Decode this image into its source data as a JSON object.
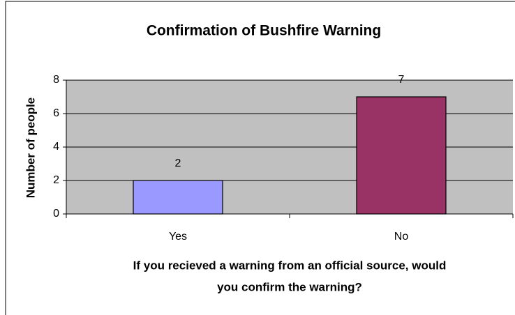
{
  "chart_data": {
    "type": "bar",
    "title": "Confirmation of Bushfire Warning",
    "categories": [
      "Yes",
      "No"
    ],
    "values": [
      2,
      7
    ],
    "colors": [
      "#9999ff",
      "#993366"
    ],
    "x_label": [
      "If you recieved a warning from an official source, would",
      "you confirm the warning?"
    ],
    "y_label": "Number of people",
    "ylim": [
      0,
      8
    ],
    "yticks": [
      0,
      2,
      4,
      6,
      8
    ],
    "grid": true,
    "data_labels": true
  }
}
